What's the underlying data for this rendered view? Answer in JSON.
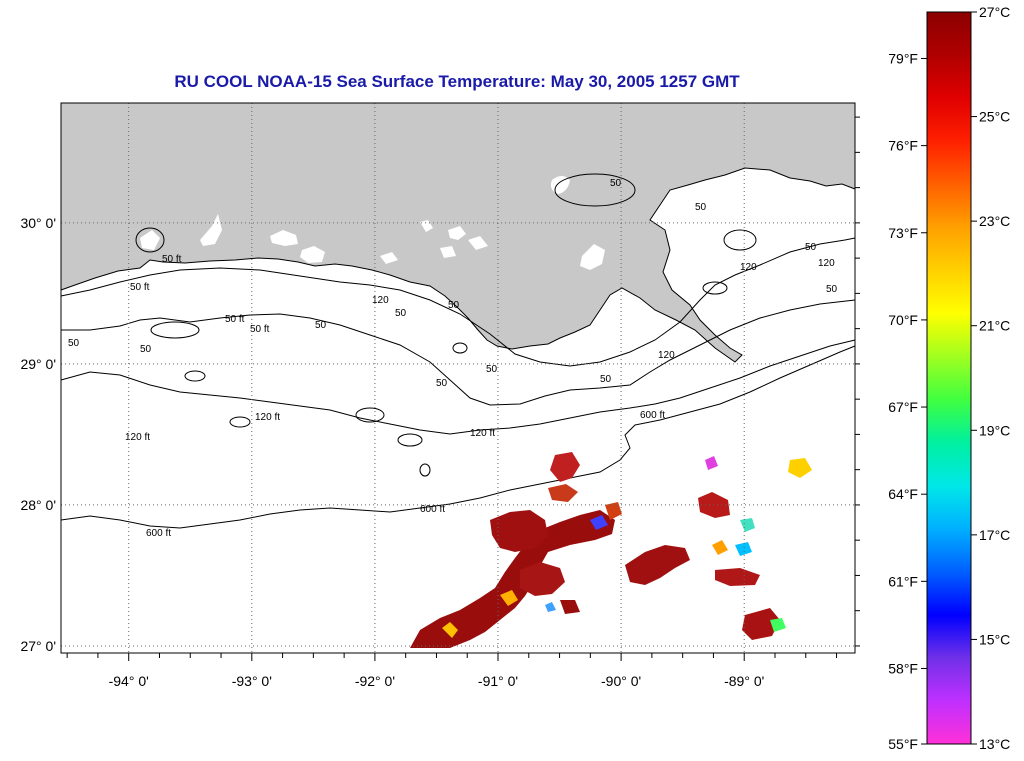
{
  "title": "RU COOL  NOAA-15  Sea Surface Temperature:  May 30, 2005 1257 GMT",
  "map": {
    "lon_ticks": [
      {
        "lon": -94,
        "label": "-94° 0'"
      },
      {
        "lon": -93,
        "label": "-93° 0'"
      },
      {
        "lon": -92,
        "label": "-92° 0'"
      },
      {
        "lon": -91,
        "label": "-91° 0'"
      },
      {
        "lon": -90,
        "label": "-90° 0'"
      },
      {
        "lon": -89,
        "label": "-89° 0'"
      }
    ],
    "lat_ticks": [
      {
        "lat": 30,
        "label": "30° 0'"
      },
      {
        "lat": 29,
        "label": "29° 0'"
      },
      {
        "lat": 28,
        "label": "28° 0'"
      },
      {
        "lat": 27,
        "label": "27° 0'"
      }
    ],
    "lon_range": [
      -94.55,
      -88.1
    ],
    "lat_range": [
      26.95,
      30.85
    ],
    "land_color": "#c8c8c8",
    "water_color": "#ffffff",
    "grid": true,
    "contour_labels": {
      "c50": "50 ft",
      "c120": "120 ft",
      "c600": "600 ft",
      "n50": "50",
      "n120": "120",
      "n600": "600"
    }
  },
  "colorbar": {
    "fahrenheit": [
      "79°F",
      "76°F",
      "73°F",
      "70°F",
      "67°F",
      "64°F",
      "61°F",
      "58°F",
      "55°F"
    ],
    "celsius": [
      "27°C",
      "25°C",
      "23°C",
      "21°C",
      "19°C",
      "17°C",
      "15°C",
      "13°C"
    ],
    "range_c": [
      13,
      27
    ],
    "colors": [
      "#ff30d8",
      "#c030ff",
      "#7030e8",
      "#0000ff",
      "#0060ff",
      "#00b0ff",
      "#00e8e8",
      "#00f0a0",
      "#40ff40",
      "#a0ff20",
      "#ffff00",
      "#ffd000",
      "#ffa000",
      "#ff6000",
      "#ff2000",
      "#e00000",
      "#b00000",
      "#8b0000"
    ]
  }
}
